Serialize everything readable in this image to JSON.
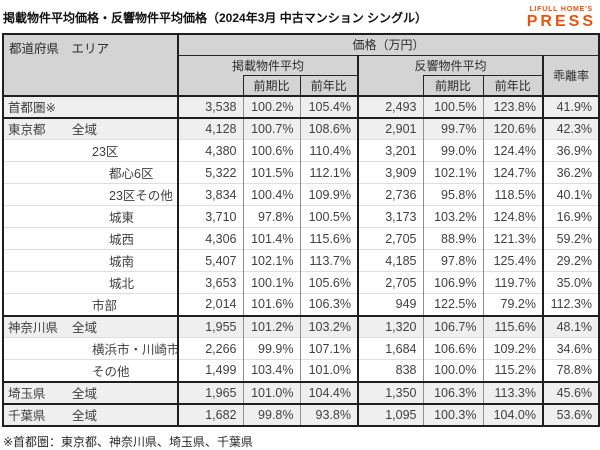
{
  "page": {
    "title": "掲載物件平均価格・反響物件平均価格（2024年3月 中古マンション シングル）",
    "footnote": "※首都圏：東京都、神奈川県、埼玉県、千葉県"
  },
  "logo": {
    "line1": "LIFULL HOME'S",
    "line2": "PRESS",
    "color": "#E9530E"
  },
  "colors": {
    "header_bg": "#d4d4d4",
    "shaded_row_bg": "#efefef",
    "border_dark": "#1f1f1f",
    "border_thin": "#8f8f8f",
    "text": "#404040",
    "accent_orange": "#E9530E"
  },
  "chart_data": {
    "type": "table",
    "title": "掲載物件平均価格・反響物件平均価格（2024年3月 中古マンション シングル）",
    "header": {
      "area_col": "都道府県　エリア",
      "price": "価格（万円）",
      "listed_group": "掲載物件平均",
      "response_group": "反響物件平均",
      "deviation": "乖離率",
      "prev_period": "前期比",
      "prev_year": "前年比"
    },
    "columns": [
      "都道府県 エリア",
      "掲載物件平均",
      "掲載 前期比",
      "掲載 前年比",
      "反響物件平均",
      "反響 前期比",
      "反響 前年比",
      "乖離率"
    ],
    "rows": [
      {
        "pref": "首都圏※",
        "area": "",
        "indent": 0,
        "shaded": true,
        "group_top": true,
        "values": [
          "3,538",
          "100.2%",
          "105.4%",
          "2,493",
          "100.5%",
          "123.8%",
          "41.9%"
        ]
      },
      {
        "pref": "東京都",
        "area": "全域",
        "indent": 1,
        "shaded": true,
        "group_top": true,
        "values": [
          "4,128",
          "100.7%",
          "108.6%",
          "2,901",
          "99.7%",
          "120.6%",
          "42.3%"
        ]
      },
      {
        "pref": "",
        "area": "23区",
        "indent": 2,
        "shaded": false,
        "group_top": false,
        "values": [
          "4,380",
          "100.6%",
          "110.4%",
          "3,201",
          "99.0%",
          "124.4%",
          "36.9%"
        ]
      },
      {
        "pref": "",
        "area": "都心6区",
        "indent": 3,
        "shaded": false,
        "group_top": false,
        "values": [
          "5,322",
          "101.5%",
          "112.1%",
          "3,909",
          "102.1%",
          "124.7%",
          "36.2%"
        ]
      },
      {
        "pref": "",
        "area": "23区その他",
        "indent": 3,
        "shaded": false,
        "group_top": false,
        "values": [
          "3,834",
          "100.4%",
          "109.9%",
          "2,736",
          "95.8%",
          "118.5%",
          "40.1%"
        ]
      },
      {
        "pref": "",
        "area": "城東",
        "indent": 3,
        "shaded": false,
        "group_top": false,
        "values": [
          "3,710",
          "97.8%",
          "100.5%",
          "3,173",
          "103.2%",
          "124.8%",
          "16.9%"
        ]
      },
      {
        "pref": "",
        "area": "城西",
        "indent": 3,
        "shaded": false,
        "group_top": false,
        "values": [
          "4,306",
          "101.4%",
          "115.6%",
          "2,705",
          "88.9%",
          "121.3%",
          "59.2%"
        ]
      },
      {
        "pref": "",
        "area": "城南",
        "indent": 3,
        "shaded": false,
        "group_top": false,
        "values": [
          "5,407",
          "102.1%",
          "113.7%",
          "4,185",
          "97.8%",
          "125.4%",
          "29.2%"
        ]
      },
      {
        "pref": "",
        "area": "城北",
        "indent": 3,
        "shaded": false,
        "group_top": false,
        "values": [
          "3,653",
          "100.1%",
          "105.6%",
          "2,705",
          "106.9%",
          "119.7%",
          "35.0%"
        ]
      },
      {
        "pref": "",
        "area": "市部",
        "indent": 2,
        "shaded": false,
        "group_top": false,
        "values": [
          "2,014",
          "101.6%",
          "106.3%",
          "949",
          "122.5%",
          "79.2%",
          "112.3%"
        ]
      },
      {
        "pref": "神奈川県",
        "area": "全域",
        "indent": 1,
        "shaded": true,
        "group_top": true,
        "values": [
          "1,955",
          "101.2%",
          "103.2%",
          "1,320",
          "106.7%",
          "115.6%",
          "48.1%"
        ]
      },
      {
        "pref": "",
        "area": "横浜市・川崎市",
        "indent": 2,
        "shaded": false,
        "group_top": false,
        "values": [
          "2,266",
          "99.9%",
          "107.1%",
          "1,684",
          "106.6%",
          "109.2%",
          "34.6%"
        ]
      },
      {
        "pref": "",
        "area": "その他",
        "indent": 2,
        "shaded": false,
        "group_top": false,
        "values": [
          "1,499",
          "103.4%",
          "101.0%",
          "838",
          "100.0%",
          "115.2%",
          "78.8%"
        ]
      },
      {
        "pref": "埼玉県",
        "area": "全域",
        "indent": 1,
        "shaded": true,
        "group_top": true,
        "values": [
          "1,965",
          "101.0%",
          "104.4%",
          "1,350",
          "106.3%",
          "113.3%",
          "45.6%"
        ]
      },
      {
        "pref": "千葉県",
        "area": "全域",
        "indent": 1,
        "shaded": true,
        "group_top": true,
        "values": [
          "1,682",
          "99.8%",
          "93.8%",
          "1,095",
          "100.3%",
          "104.0%",
          "53.6%"
        ]
      }
    ]
  }
}
